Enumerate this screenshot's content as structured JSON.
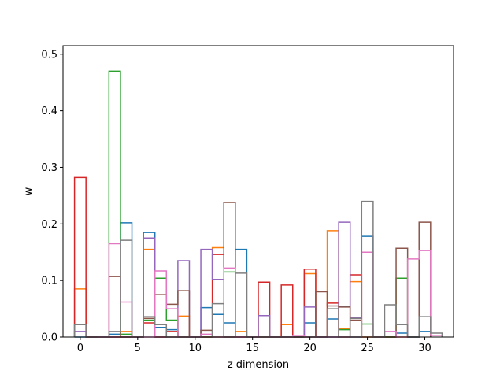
{
  "chart_data": {
    "type": "bar",
    "title": "",
    "xlabel": "z dimension",
    "ylabel": "w",
    "xlim": [
      -1.5,
      32.5
    ],
    "ylim": [
      0,
      0.515
    ],
    "xticks": [
      0,
      5,
      10,
      15,
      20,
      25,
      30
    ],
    "yticks": [
      0.0,
      0.1,
      0.2,
      0.3,
      0.4,
      0.5
    ],
    "ytick_labels": [
      "0.0",
      "0.1",
      "0.2",
      "0.3",
      "0.4",
      "0.5"
    ],
    "grid": false,
    "histtype": "step",
    "bin_width": 1,
    "series": [
      {
        "color": "#1f77b4",
        "x": [
          0,
          3,
          4,
          6,
          7,
          8,
          11,
          12,
          13,
          14,
          19,
          20,
          22,
          23,
          25,
          28,
          30
        ],
        "values": [
          0.0,
          0.005,
          0.202,
          0.185,
          0.017,
          0.013,
          0.052,
          0.04,
          0.025,
          0.155,
          0.0,
          0.025,
          0.032,
          0.054,
          0.178,
          0.007,
          0.01
        ]
      },
      {
        "color": "#ff7f0e",
        "x": [
          0,
          4,
          6,
          9,
          12,
          14,
          17,
          18,
          20,
          22,
          23,
          24,
          28
        ],
        "values": [
          0.085,
          0.01,
          0.155,
          0.037,
          0.158,
          0.01,
          0.0,
          0.022,
          0.112,
          0.188,
          0.015,
          0.098,
          0.0
        ]
      },
      {
        "color": "#2ca02c",
        "x": [
          3,
          4,
          6,
          7,
          8,
          13,
          23,
          25,
          28
        ],
        "values": [
          0.47,
          0.005,
          0.03,
          0.104,
          0.03,
          0.115,
          0.013,
          0.023,
          0.104
        ]
      },
      {
        "color": "#d62728",
        "x": [
          0,
          6,
          8,
          12,
          16,
          18,
          20,
          22,
          24
        ],
        "values": [
          0.282,
          0.025,
          0.01,
          0.146,
          0.097,
          0.092,
          0.12,
          0.06,
          0.11
        ]
      },
      {
        "color": "#9467bd",
        "x": [
          0,
          6,
          9,
          11,
          12,
          16,
          20,
          23,
          24
        ],
        "values": [
          0.01,
          0.175,
          0.135,
          0.155,
          0.102,
          0.038,
          0.053,
          0.203,
          0.035
        ]
      },
      {
        "color": "#8c564b",
        "x": [
          3,
          6,
          7,
          8,
          9,
          11,
          13,
          21,
          22,
          23,
          24,
          28,
          30
        ],
        "values": [
          0.107,
          0.033,
          0.075,
          0.058,
          0.082,
          0.012,
          0.238,
          0.08,
          0.055,
          0.053,
          0.03,
          0.157,
          0.203
        ]
      },
      {
        "color": "#e377c2",
        "x": [
          2,
          3,
          4,
          7,
          8,
          11,
          13,
          19,
          25,
          27,
          29,
          30,
          31
        ],
        "values": [
          0.0,
          0.165,
          0.062,
          0.117,
          0.05,
          0.005,
          0.122,
          0.003,
          0.15,
          0.01,
          0.138,
          0.153,
          0.003
        ]
      },
      {
        "color": "#7f7f7f",
        "x": [
          0,
          3,
          4,
          6,
          7,
          12,
          14,
          21,
          22,
          24,
          25,
          27,
          28,
          30,
          31
        ],
        "values": [
          0.022,
          0.01,
          0.171,
          0.036,
          0.022,
          0.059,
          0.113,
          0.0,
          0.05,
          0.033,
          0.24,
          0.057,
          0.022,
          0.036,
          0.007
        ]
      }
    ]
  }
}
